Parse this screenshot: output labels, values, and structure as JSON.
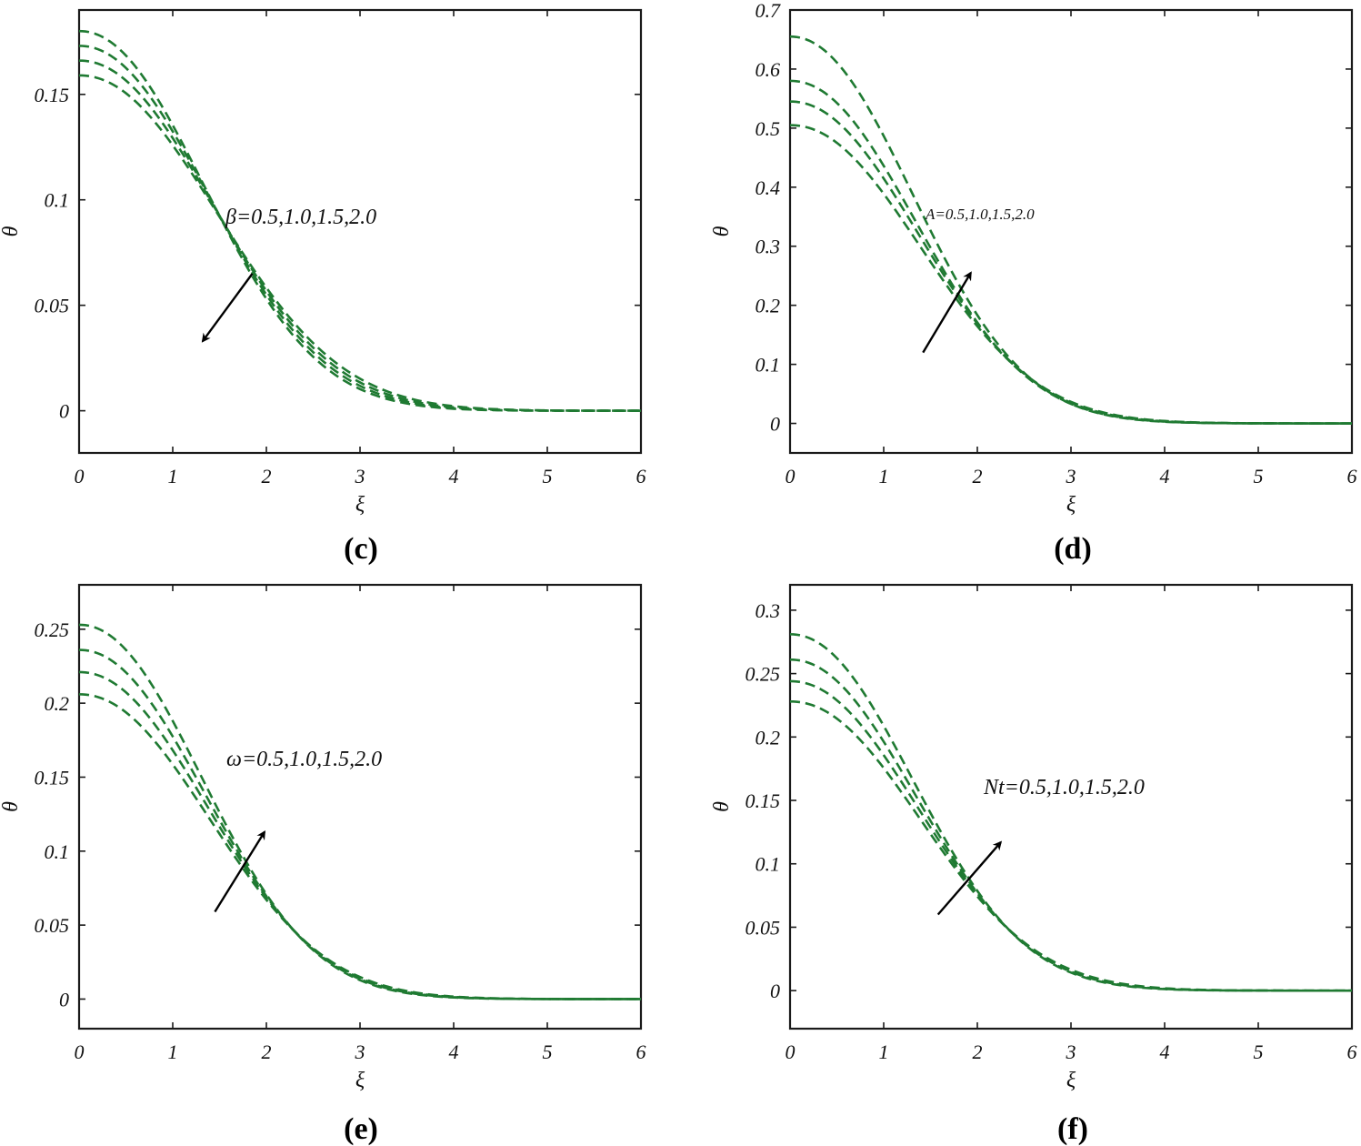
{
  "colors": {
    "series": "#1f7a32",
    "arrow": "#000000",
    "axis": "#1a1a1a"
  },
  "chart_data": [
    {
      "panel": "c",
      "caption": {
        "open": "(",
        "letter": "c",
        "close": ")"
      },
      "type": "line",
      "xlabel": "ξ",
      "ylabel": "θ",
      "xlim": [
        0,
        6
      ],
      "ylim": [
        -0.02,
        0.19
      ],
      "xticks": [
        "0",
        "1",
        "2",
        "3",
        "4",
        "5",
        "6"
      ],
      "yticks": [
        "0",
        "0.05",
        "0.1",
        "0.15"
      ],
      "ytick_values": [
        0,
        0.05,
        0.1,
        0.15
      ],
      "annotation": "β=0.5,1.0,1.5,2.0",
      "arrow": {
        "from": [
          1.85,
          0.065
        ],
        "to": [
          1.32,
          0.033
        ]
      },
      "series": [
        {
          "name": "β=0.5",
          "initial": 0.18,
          "decay": 1.0
        },
        {
          "name": "β=1.0",
          "initial": 0.173,
          "decay": 0.97
        },
        {
          "name": "β=1.5",
          "initial": 0.166,
          "decay": 0.94
        },
        {
          "name": "β=2.0",
          "initial": 0.159,
          "decay": 0.91
        }
      ]
    },
    {
      "panel": "d",
      "caption": {
        "open": "(",
        "letter": "d",
        "close": ")"
      },
      "type": "line",
      "xlabel": "ξ",
      "ylabel": "θ",
      "xlim": [
        0,
        6
      ],
      "ylim": [
        -0.05,
        0.7
      ],
      "xticks": [
        "0",
        "1",
        "2",
        "3",
        "4",
        "5",
        "6"
      ],
      "yticks": [
        "0",
        "0.1",
        "0.2",
        "0.3",
        "0.4",
        "0.5",
        "0.6",
        "0.7"
      ],
      "ytick_values": [
        0,
        0.1,
        0.2,
        0.3,
        0.4,
        0.5,
        0.6,
        0.7
      ],
      "annotation": "A=0.5,1.0,1.5,2.0",
      "annotation_small": true,
      "arrow": {
        "from": [
          1.42,
          0.12
        ],
        "to": [
          1.93,
          0.255
        ]
      },
      "series": [
        {
          "name": "A=0.5",
          "initial": 0.505,
          "decay": 0.96
        },
        {
          "name": "A=1.0",
          "initial": 0.545,
          "decay": 0.98
        },
        {
          "name": "A=1.5",
          "initial": 0.58,
          "decay": 1.0
        },
        {
          "name": "A=2.0",
          "initial": 0.655,
          "decay": 1.02
        }
      ]
    },
    {
      "panel": "e",
      "caption": {
        "open": "(",
        "letter": "e",
        "close": ")"
      },
      "type": "line",
      "xlabel": "ξ",
      "ylabel": "θ",
      "xlim": [
        0,
        6
      ],
      "ylim": [
        -0.02,
        0.28
      ],
      "xticks": [
        "0",
        "1",
        "2",
        "3",
        "4",
        "5",
        "6"
      ],
      "yticks": [
        "0",
        "0.05",
        "0.1",
        "0.15",
        "0.2",
        "0.25"
      ],
      "ytick_values": [
        0,
        0.05,
        0.1,
        0.15,
        0.2,
        0.25
      ],
      "annotation": "ω=0.5,1.0,1.5,2.0",
      "arrow": {
        "from": [
          1.45,
          0.059
        ],
        "to": [
          1.98,
          0.113
        ]
      },
      "series": [
        {
          "name": "ω=0.5",
          "initial": 0.206,
          "decay": 0.96
        },
        {
          "name": "ω=1.0",
          "initial": 0.221,
          "decay": 0.98
        },
        {
          "name": "ω=1.5",
          "initial": 0.236,
          "decay": 1.0
        },
        {
          "name": "ω=2.0",
          "initial": 0.253,
          "decay": 1.02
        }
      ]
    },
    {
      "panel": "f",
      "caption": {
        "open": "(",
        "letter": "f",
        "close": ")"
      },
      "type": "line",
      "xlabel": "ξ",
      "ylabel": "θ",
      "xlim": [
        0,
        6
      ],
      "ylim": [
        -0.03,
        0.32
      ],
      "xticks": [
        "0",
        "1",
        "2",
        "3",
        "4",
        "5",
        "6"
      ],
      "yticks": [
        "0",
        "0.05",
        "0.1",
        "0.15",
        "0.2",
        "0.25",
        "0.3"
      ],
      "ytick_values": [
        0,
        0.05,
        0.1,
        0.15,
        0.2,
        0.25,
        0.3
      ],
      "annotation": "Nt=0.5,1.0,1.5,2.0",
      "arrow": {
        "from": [
          1.58,
          0.06
        ],
        "to": [
          2.25,
          0.117
        ]
      },
      "series": [
        {
          "name": "Nt=0.5",
          "initial": 0.228,
          "decay": 0.96
        },
        {
          "name": "Nt=1.0",
          "initial": 0.244,
          "decay": 0.98
        },
        {
          "name": "Nt=1.5",
          "initial": 0.261,
          "decay": 1.0
        },
        {
          "name": "Nt=2.0",
          "initial": 0.281,
          "decay": 1.02
        }
      ]
    }
  ]
}
